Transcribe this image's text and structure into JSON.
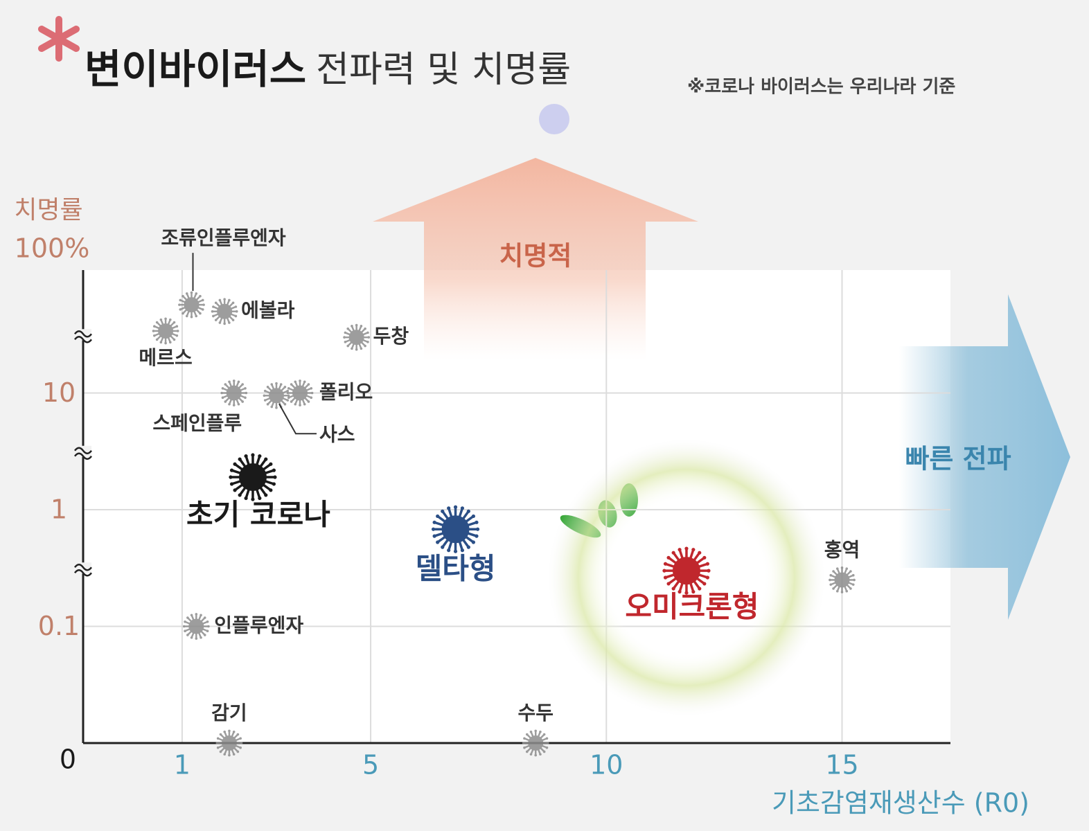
{
  "chart_data": {
    "type": "scatter",
    "title_parts": [
      "변이바이러스",
      "전파력 및 치명률"
    ],
    "note": "※코로나 바이러스는 우리나라 기준",
    "annotations": [
      "치명적",
      "빠른 전파"
    ],
    "x_label": "기초감염재생산수 (R0)",
    "y_label": "치명률",
    "xlim": [
      -1.1,
      17.3
    ],
    "xticks": [
      1,
      5,
      10,
      15
    ],
    "ylim": [
      0,
      100
    ],
    "yticks": [
      0,
      0.1,
      1,
      10,
      {
        "value": 100,
        "label": "100%"
      }
    ],
    "yscale": "log",
    "grid": true,
    "series": [
      {
        "color": "#8c8c8c",
        "size": "small",
        "labels": [
          "조류인플루엔자",
          "에볼라",
          "메르스",
          "두창",
          "스페인플루",
          "사스",
          "폴리오",
          "홍역",
          "인플루엔자",
          "감기",
          "수두"
        ],
        "x": [
          1.2,
          1.9,
          0.65,
          4.7,
          2.1,
          3.0,
          3.5,
          15,
          1.3,
          2.0,
          8.5
        ],
        "values": [
          57,
          50,
          34,
          30,
          10,
          9.5,
          10,
          0.25,
          0.1,
          0,
          0
        ]
      },
      {
        "color": "#1a1a1a",
        "size": "large",
        "labels": [
          "초기 코로나"
        ],
        "x": [
          2.5
        ],
        "values": [
          1.9
        ]
      },
      {
        "color": "#2b4f86",
        "size": "large",
        "labels": [
          "델타형"
        ],
        "x": [
          6.8
        ],
        "values": [
          0.68
        ]
      },
      {
        "color": "#c0272d",
        "size": "large",
        "labels": [
          "오미크론형"
        ],
        "x": [
          11.7
        ],
        "values": [
          0.3
        ]
      }
    ]
  }
}
